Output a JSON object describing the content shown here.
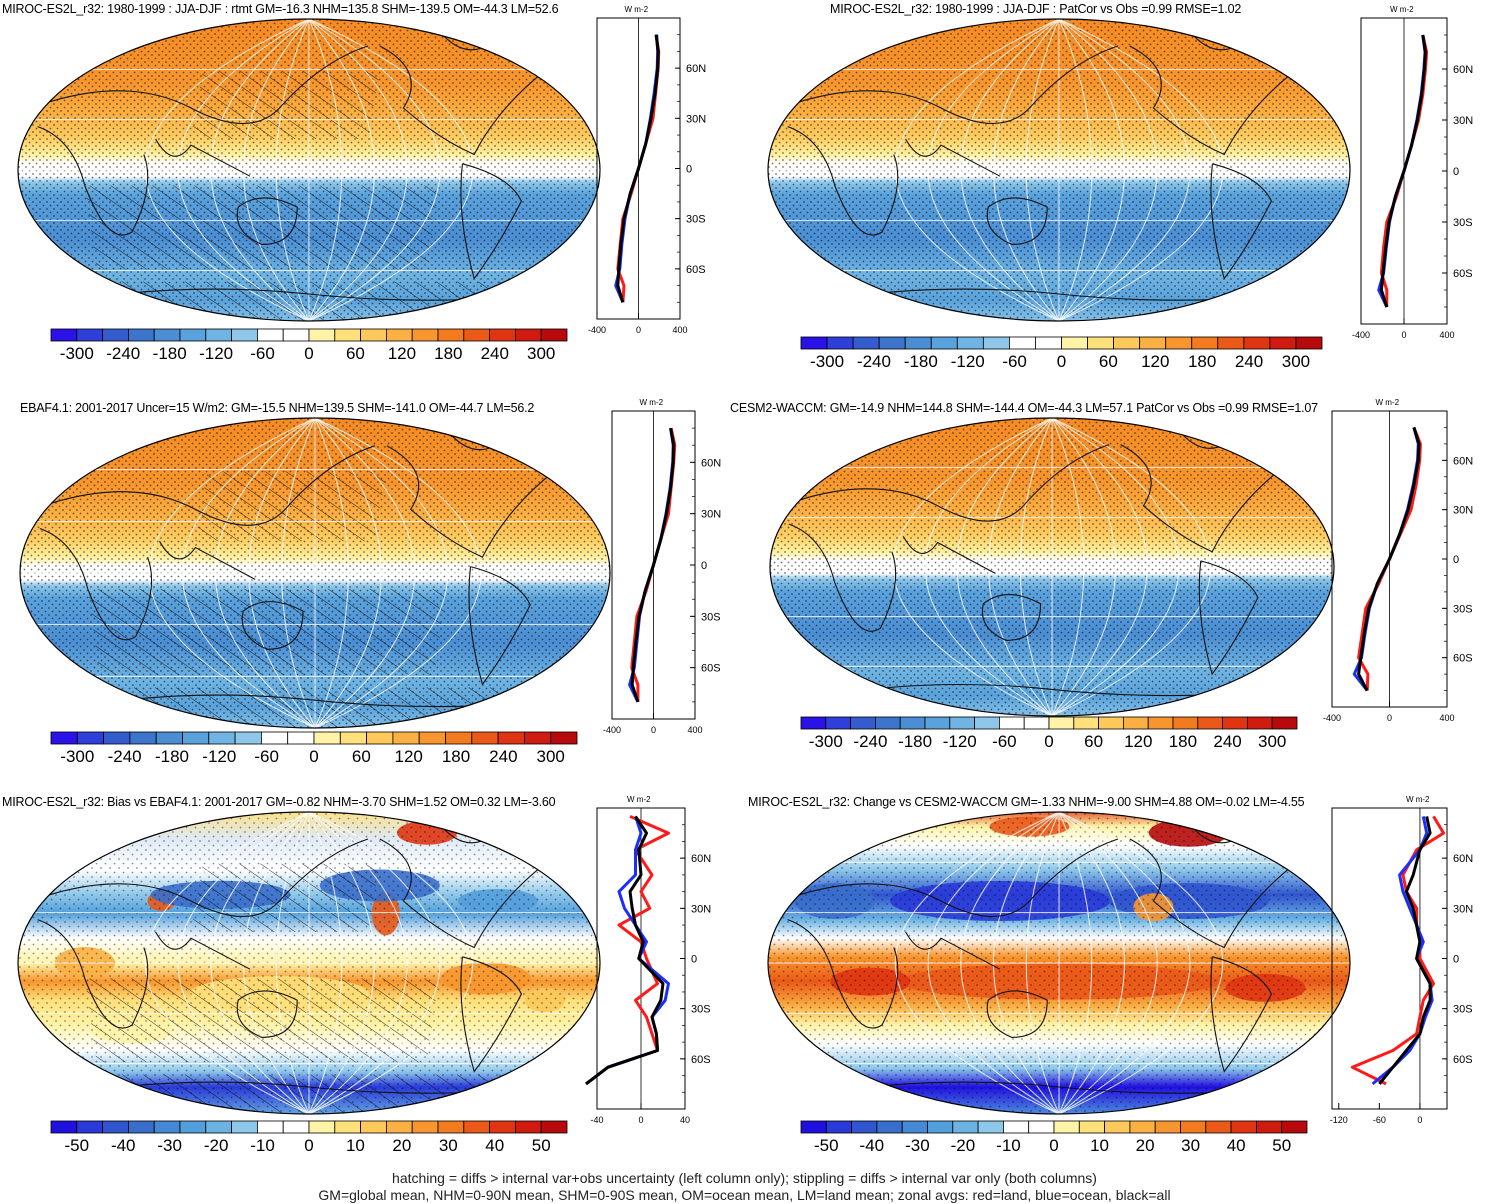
{
  "panels": [
    {
      "id": "p1",
      "title": "MIROC-ES2L_r32: 1980-1999 : JJA-DJF : rtmt GM=-16.3 NHM=135.8 SHM=-139.5 OM=-44.3 LM=52.6",
      "field": "abs",
      "hatch": true,
      "stipple": "dense",
      "lat_labels": [
        "60N",
        "30N",
        "0",
        "30S",
        "60S"
      ],
      "zonal_xticks": [
        "-400",
        "0",
        "400"
      ],
      "zonal_xlim": [
        -400,
        400
      ],
      "zonal_unit": "W m-2",
      "cbar_labels": [
        "-300",
        "-240",
        "-180",
        "-120",
        "-60",
        "0",
        "60",
        "120",
        "180",
        "240",
        "300"
      ]
    },
    {
      "id": "p2",
      "title": "MIROC-ES2L_r32: 1980-1999 : JJA-DJF : PatCor vs Obs =0.99 RMSE=1.02",
      "field": "abs",
      "hatch": false,
      "stipple": "dense",
      "lat_labels": [
        "60N",
        "30N",
        "0",
        "30S",
        "60S"
      ],
      "zonal_xticks": [
        "-400",
        "0",
        "400"
      ],
      "zonal_xlim": [
        -400,
        400
      ],
      "zonal_unit": "W m-2",
      "cbar_labels": [
        "-300",
        "-240",
        "-180",
        "-120",
        "-60",
        "0",
        "60",
        "120",
        "180",
        "240",
        "300"
      ]
    },
    {
      "id": "p3",
      "title": "EBAF4.1: 2001-2017 Uncer=15 W/m2: GM=-15.5 NHM=139.5 SHM=-141.0 OM=-44.7 LM=56.2",
      "field": "abs",
      "hatch": true,
      "stipple": "dense",
      "lat_labels": [
        "60N",
        "30N",
        "0",
        "30S",
        "60S"
      ],
      "zonal_xticks": [
        "-400",
        "0",
        "400"
      ],
      "zonal_xlim": [
        -400,
        400
      ],
      "zonal_unit": "W m-2",
      "cbar_labels": [
        "-300",
        "-240",
        "-180",
        "-120",
        "-60",
        "0",
        "60",
        "120",
        "180",
        "240",
        "300"
      ]
    },
    {
      "id": "p4",
      "title": "CESM2-WACCM: GM=-14.9 NHM=144.8 SHM=-144.4 OM=-44.3 LM=57.1 PatCor vs Obs =0.99 RMSE=1.07",
      "field": "abs",
      "hatch": false,
      "stipple": "dense",
      "lat_labels": [
        "60N",
        "30N",
        "0",
        "30S",
        "60S"
      ],
      "zonal_xticks": [
        "-400",
        "0",
        "400"
      ],
      "zonal_xlim": [
        -400,
        400
      ],
      "zonal_unit": "W m-2",
      "cbar_labels": [
        "-300",
        "-240",
        "-180",
        "-120",
        "-60",
        "0",
        "60",
        "120",
        "180",
        "240",
        "300"
      ]
    },
    {
      "id": "p5",
      "title": "MIROC-ES2L_r32: Bias vs EBAF4.1: 2001-2017 GM=-0.82 NHM=-3.70 SHM=1.52 OM=0.32 LM=-3.60",
      "field": "diff",
      "hatch": true,
      "stipple": "sparse",
      "lat_labels": [
        "60N",
        "30N",
        "0",
        "30S",
        "60S"
      ],
      "zonal_xticks": [
        "-40",
        "0",
        "40"
      ],
      "zonal_xlim": [
        -40,
        40
      ],
      "zonal_unit": "W m-2",
      "cbar_labels": [
        "-50",
        "-40",
        "-30",
        "-20",
        "-10",
        "0",
        "10",
        "20",
        "30",
        "40",
        "50"
      ]
    },
    {
      "id": "p6",
      "title": "MIROC-ES2L_r32: Change vs CESM2-WACCM GM=-1.33 NHM=-9.00 SHM=4.88 OM=-0.02 LM=-4.55",
      "field": "diff",
      "hatch": false,
      "stipple": "sparse",
      "lat_labels": [
        "60N",
        "30N",
        "0",
        "30S",
        "60S"
      ],
      "zonal_xticks": [
        "-120",
        "-60",
        "0"
      ],
      "zonal_xlim": [
        -130,
        40
      ],
      "zonal_unit": "W m-2",
      "cbar_labels": [
        "-50",
        "-40",
        "-30",
        "-20",
        "-10",
        "0",
        "10",
        "20",
        "30",
        "40",
        "50"
      ]
    }
  ],
  "colors": {
    "abs_scale": [
      "#2a12e8",
      "#2f3fd9",
      "#355ccf",
      "#3d74cc",
      "#4b8ed4",
      "#5aa2dc",
      "#6fb4e2",
      "#8ec7ea",
      "#ffffff",
      "#ffffff",
      "#fff3a8",
      "#ffe07a",
      "#fdc95a",
      "#fbb044",
      "#f7962e",
      "#f27a1f",
      "#ea5918",
      "#df3512",
      "#d01c10",
      "#b60a0c"
    ],
    "diff_scale": [
      "#2010e0",
      "#2a3ad8",
      "#3055cf",
      "#3a6ecb",
      "#4588d3",
      "#539fdc",
      "#6cb3e3",
      "#8dc7ea",
      "#ffffff",
      "#ffffff",
      "#fff3a8",
      "#ffe07a",
      "#fdc95a",
      "#fbb044",
      "#f7962e",
      "#f27a1f",
      "#ea5918",
      "#df3512",
      "#d01c10",
      "#b60a0c"
    ],
    "land_line": "#ff1a1a",
    "ocean_line": "#1a2eff",
    "all_line": "#000000"
  },
  "chart_data": [
    {
      "type": "heatmap",
      "title": "MIROC-ES2L_r32: 1980-1999 : JJA-DJF : rtmt GM=-16.3 NHM=135.8 SHM=-139.5 OM=-44.3 LM=52.6",
      "zonal_lat": [
        80,
        70,
        60,
        45,
        30,
        15,
        0,
        -15,
        -30,
        -45,
        -60,
        -70,
        -80
      ],
      "zonal_all": [
        170,
        190,
        185,
        160,
        120,
        70,
        0,
        -80,
        -140,
        -170,
        -190,
        -200,
        -150
      ],
      "zonal_land": [
        170,
        195,
        190,
        165,
        140,
        70,
        0,
        -70,
        -150,
        -175,
        -200,
        -140,
        -150
      ],
      "zonal_ocean": [
        175,
        185,
        180,
        150,
        115,
        70,
        0,
        -80,
        -130,
        -160,
        -180,
        -220,
        -150
      ]
    },
    {
      "type": "heatmap",
      "title": "MIROC-ES2L_r32: 1980-1999 : JJA-DJF : PatCor vs Obs =0.99 RMSE=1.02",
      "zonal_lat": [
        80,
        70,
        60,
        45,
        30,
        15,
        0,
        -15,
        -30,
        -45,
        -60,
        -70,
        -80
      ],
      "zonal_all": [
        175,
        200,
        190,
        165,
        125,
        70,
        0,
        -80,
        -140,
        -170,
        -195,
        -210,
        -160
      ],
      "zonal_land": [
        175,
        210,
        200,
        175,
        135,
        70,
        0,
        -70,
        -160,
        -190,
        -210,
        -160,
        -160
      ],
      "zonal_ocean": [
        175,
        195,
        185,
        160,
        120,
        70,
        0,
        -80,
        -135,
        -165,
        -190,
        -235,
        -160
      ]
    },
    {
      "type": "heatmap",
      "title": "EBAF4.1: 2001-2017 Uncer=15 W/m2: GM=-15.5 NHM=139.5 SHM=-141.0 OM=-44.7 LM=56.2",
      "zonal_lat": [
        80,
        70,
        60,
        45,
        30,
        15,
        0,
        -15,
        -30,
        -45,
        -60,
        -70,
        -80
      ],
      "zonal_all": [
        165,
        195,
        190,
        165,
        125,
        70,
        0,
        -80,
        -140,
        -170,
        -195,
        -205,
        -150
      ],
      "zonal_land": [
        170,
        205,
        195,
        170,
        145,
        70,
        0,
        -70,
        -160,
        -185,
        -210,
        -150,
        -150
      ],
      "zonal_ocean": [
        165,
        190,
        185,
        160,
        120,
        70,
        0,
        -80,
        -135,
        -160,
        -185,
        -230,
        -150
      ]
    },
    {
      "type": "heatmap",
      "title": "CESM2-WACCM: GM=-14.9 NHM=144.8 SHM=-144.4 OM=-44.3 LM=57.1 PatCor vs Obs =0.99 RMSE=1.07",
      "zonal_lat": [
        80,
        70,
        60,
        45,
        30,
        15,
        0,
        -15,
        -30,
        -45,
        -60,
        -70,
        -80
      ],
      "zonal_all": [
        170,
        205,
        200,
        170,
        130,
        70,
        0,
        -85,
        -145,
        -175,
        -200,
        -215,
        -155
      ],
      "zonal_land": [
        170,
        215,
        210,
        185,
        150,
        75,
        0,
        -75,
        -165,
        -190,
        -215,
        -150,
        -155
      ],
      "zonal_ocean": [
        170,
        200,
        195,
        165,
        125,
        70,
        0,
        -85,
        -140,
        -170,
        -195,
        -245,
        -155
      ]
    },
    {
      "type": "heatmap",
      "title": "MIROC-ES2L_r32: Bias vs EBAF4.1: 2001-2017 GM=-0.82 NHM=-3.70 SHM=1.52 OM=0.32 LM=-3.60",
      "zonal_lat": [
        85,
        75,
        65,
        50,
        40,
        30,
        20,
        10,
        0,
        -15,
        -25,
        -35,
        -45,
        -55,
        -65,
        -75
      ],
      "zonal_all": [
        -5,
        5,
        -2,
        0,
        -10,
        -8,
        -5,
        2,
        -2,
        20,
        18,
        10,
        14,
        15,
        -30,
        -50
      ],
      "zonal_land": [
        -10,
        25,
        -5,
        10,
        0,
        8,
        -20,
        0,
        5,
        15,
        -5,
        5,
        10,
        15,
        -30,
        -50
      ],
      "zonal_ocean": [
        -5,
        0,
        -5,
        -5,
        -20,
        -15,
        -5,
        5,
        -2,
        25,
        22,
        10,
        14,
        15,
        -30,
        -50
      ]
    },
    {
      "type": "heatmap",
      "title": "MIROC-ES2L_r32: Change vs CESM2-WACCM GM=-1.33 NHM=-9.00 SHM=4.88 OM=-0.02 LM=-4.55",
      "zonal_lat": [
        85,
        75,
        65,
        50,
        40,
        30,
        20,
        10,
        0,
        -15,
        -25,
        -35,
        -45,
        -55,
        -65,
        -75
      ],
      "zonal_all": [
        10,
        15,
        0,
        -10,
        -20,
        -10,
        -5,
        0,
        -5,
        15,
        15,
        5,
        0,
        -20,
        -40,
        -60
      ],
      "zonal_land": [
        20,
        35,
        -5,
        -25,
        -20,
        -5,
        -5,
        0,
        0,
        20,
        5,
        0,
        -5,
        -40,
        -100,
        -50
      ],
      "zonal_ocean": [
        5,
        10,
        0,
        -30,
        -25,
        -15,
        -5,
        5,
        -5,
        15,
        18,
        8,
        0,
        -15,
        -40,
        -70
      ]
    }
  ],
  "footer": {
    "line1": "hatching = diffs > internal var+obs uncertainty (left column only); stippling = diffs > internal var only (both columns)",
    "line2": "GM=global mean, NHM=0-90N mean, SHM=0-90S mean, OM=ocean mean, LM=land mean; zonal avgs: red=land, blue=ocean, black=all"
  }
}
